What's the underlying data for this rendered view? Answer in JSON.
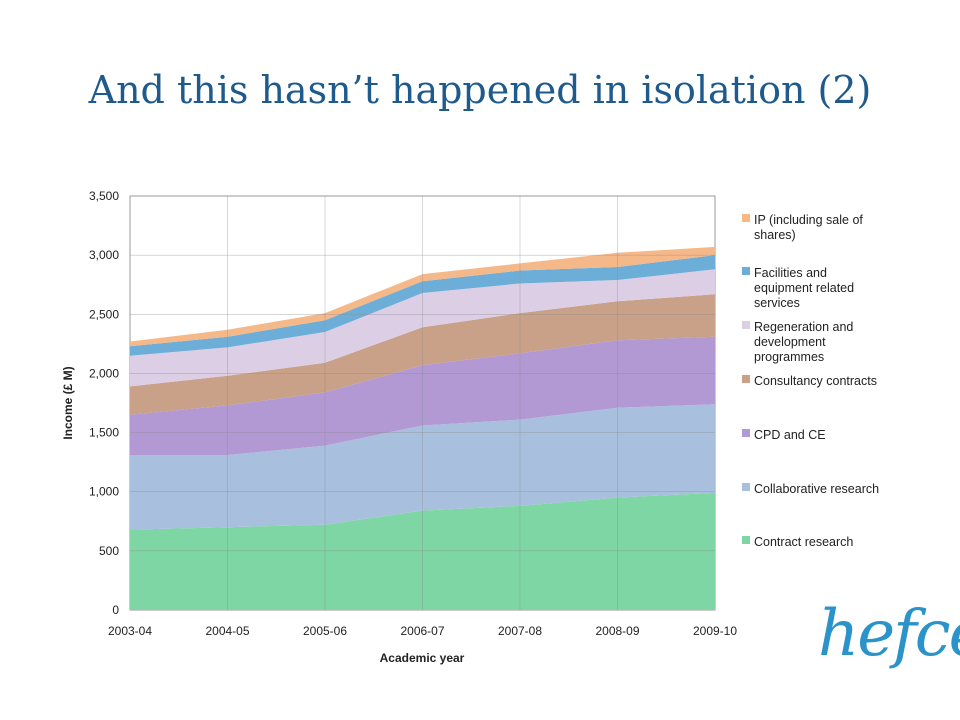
{
  "slide": {
    "title": "And this hasn’t happened in isolation (2)",
    "logo_text": "hefce",
    "logo_color": "#2a93c9"
  },
  "chart_data": {
    "type": "area",
    "stacked": true,
    "categories": [
      "2003-04",
      "2004-05",
      "2005-06",
      "2006-07",
      "2007-08",
      "2008-09",
      "2009-10"
    ],
    "xlabel": "Academic year",
    "ylabel": "Income (£ M)",
    "ylim": [
      0,
      3500
    ],
    "yticks": [
      0,
      500,
      1000,
      1500,
      2000,
      2500,
      3000,
      3500
    ],
    "ytick_labels": [
      "0",
      "500",
      "1,000",
      "1,500",
      "2,000",
      "2,500",
      "3,000",
      "3,500"
    ],
    "grid": true,
    "legend_position": "right",
    "series": [
      {
        "name": "Contract research",
        "color": "#7dd6a3",
        "values": [
          680,
          700,
          720,
          840,
          880,
          950,
          990
        ]
      },
      {
        "name": "Collaborative research",
        "color": "#a8c0de",
        "values": [
          630,
          610,
          670,
          720,
          730,
          760,
          750
        ]
      },
      {
        "name": "CPD and CE",
        "color": "#b299d4",
        "values": [
          340,
          420,
          450,
          510,
          560,
          570,
          570
        ]
      },
      {
        "name": "Consultancy contracts",
        "color": "#c9a088",
        "values": [
          240,
          250,
          250,
          320,
          340,
          330,
          360
        ]
      },
      {
        "name": "Regeneration and development programmes",
        "color": "#dccfe5",
        "values": [
          260,
          240,
          260,
          290,
          250,
          180,
          210
        ]
      },
      {
        "name": "Facilities and equipment related services",
        "color": "#6daed9",
        "values": [
          80,
          90,
          100,
          100,
          110,
          110,
          120
        ]
      },
      {
        "name": "IP (including sale of shares)",
        "color": "#f5b889",
        "values": [
          40,
          60,
          60,
          60,
          60,
          120,
          70
        ]
      }
    ],
    "legend_lines": [
      [
        "IP (including sale of",
        "shares)"
      ],
      [
        "Facilities and",
        "equipment related",
        "services"
      ],
      [
        "Regeneration and",
        "development",
        "programmes"
      ],
      [
        "Consultancy contracts"
      ],
      [
        "CPD and CE"
      ],
      [
        "Collaborative research"
      ],
      [
        "Contract research"
      ]
    ]
  }
}
